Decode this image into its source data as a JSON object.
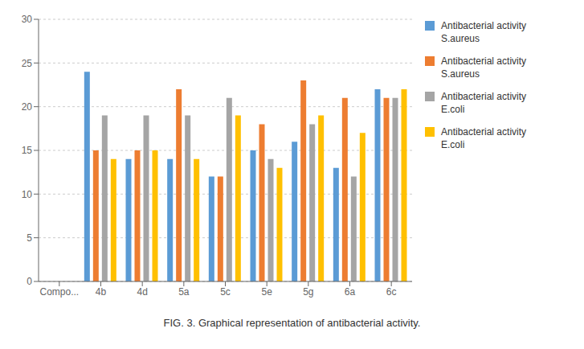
{
  "chart_data": {
    "type": "bar",
    "title": "FIG. 3. Graphical representation of antibacterial activity.",
    "categories": [
      "Compo...",
      "4b",
      "4d",
      "5a",
      "5c",
      "5e",
      "5g",
      "6a",
      "6c"
    ],
    "series": [
      {
        "name": "Antibacterial activity\nS.aureus",
        "color": "#5B9BD5",
        "values": [
          0,
          24,
          14,
          14,
          12,
          15,
          16,
          13,
          22
        ]
      },
      {
        "name": "Antibacterial activity\nS.aureus",
        "color": "#ED7D31",
        "values": [
          0,
          15,
          15,
          22,
          12,
          18,
          23,
          21,
          21
        ]
      },
      {
        "name": "Antibacterial activity\nE.coli",
        "color": "#A5A5A5",
        "values": [
          0,
          19,
          19,
          19,
          21,
          14,
          18,
          12,
          21
        ]
      },
      {
        "name": "Antibacterial activity\nE.coli",
        "color": "#FFC000",
        "values": [
          0,
          14,
          15,
          14,
          19,
          13,
          19,
          17,
          22
        ]
      }
    ],
    "ylim": [
      0,
      30
    ],
    "yticks": [
      0,
      5,
      10,
      15,
      20,
      25,
      30
    ],
    "grid": true,
    "legend": "right"
  }
}
